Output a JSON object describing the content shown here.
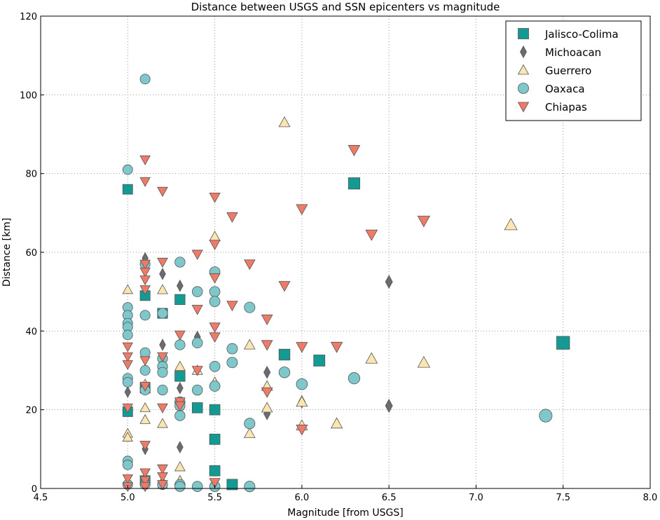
{
  "chart_data": {
    "type": "scatter",
    "title": "Distance between USGS and SSN epicenters vs magnitude",
    "xlabel": "Magnitude [from USGS]",
    "ylabel": "Distance [km]",
    "xlim": [
      4.5,
      8.0
    ],
    "ylim": [
      0,
      120
    ],
    "xticks": [
      "4.5",
      "5.0",
      "5.5",
      "6.0",
      "6.5",
      "7.0",
      "7.5",
      "8.0"
    ],
    "yticks": [
      "0",
      "20",
      "40",
      "60",
      "80",
      "100",
      "120"
    ],
    "grid": true,
    "legend_position": "top-right",
    "series": [
      {
        "name": "Jalisco-Colima",
        "marker": "square",
        "color": "#139a93",
        "points": [
          [
            5.0,
            76
          ],
          [
            5.0,
            19.5
          ],
          [
            5.1,
            49
          ],
          [
            5.1,
            25.5
          ],
          [
            5.1,
            2
          ],
          [
            5.2,
            44.5
          ],
          [
            5.3,
            48
          ],
          [
            5.3,
            28.5
          ],
          [
            5.4,
            20.5
          ],
          [
            5.5,
            20
          ],
          [
            5.5,
            12.5
          ],
          [
            5.5,
            4.5
          ],
          [
            5.6,
            1
          ],
          [
            5.9,
            34
          ],
          [
            6.1,
            32.5
          ],
          [
            6.3,
            77.5
          ],
          [
            7.5,
            37
          ]
        ]
      },
      {
        "name": "Michoacan",
        "marker": "diamond",
        "color": "#6c6c70",
        "points": [
          [
            5.0,
            24.5
          ],
          [
            5.1,
            58.5
          ],
          [
            5.1,
            56
          ],
          [
            5.1,
            10
          ],
          [
            5.2,
            54.5
          ],
          [
            5.2,
            36.5
          ],
          [
            5.3,
            51.5
          ],
          [
            5.3,
            25.5
          ],
          [
            5.3,
            10.5
          ],
          [
            5.4,
            38.5
          ],
          [
            5.8,
            29.5
          ],
          [
            5.8,
            19
          ],
          [
            6.0,
            22
          ],
          [
            6.5,
            52.5
          ],
          [
            6.5,
            21
          ]
        ]
      },
      {
        "name": "Guerrero",
        "marker": "triangle-up",
        "color": "#fbe6b2",
        "points": [
          [
            5.0,
            50.5
          ],
          [
            5.0,
            14
          ],
          [
            5.0,
            13
          ],
          [
            5.1,
            26.5
          ],
          [
            5.1,
            20.5
          ],
          [
            5.1,
            17.5
          ],
          [
            5.2,
            50.5
          ],
          [
            5.2,
            16.5
          ],
          [
            5.2,
            1
          ],
          [
            5.3,
            31
          ],
          [
            5.3,
            5.5
          ],
          [
            5.3,
            2
          ],
          [
            5.4,
            30
          ],
          [
            5.5,
            64
          ],
          [
            5.5,
            27
          ],
          [
            5.7,
            36.5
          ],
          [
            5.7,
            14
          ],
          [
            5.8,
            26
          ],
          [
            5.8,
            20.5
          ],
          [
            5.9,
            93
          ],
          [
            6.0,
            22
          ],
          [
            6.0,
            16
          ],
          [
            6.2,
            16.5
          ],
          [
            6.4,
            33
          ],
          [
            6.7,
            32
          ],
          [
            7.2,
            67
          ]
        ]
      },
      {
        "name": "Oaxaca",
        "marker": "circle",
        "color": "#7ec8cb",
        "points": [
          [
            5.0,
            81
          ],
          [
            5.0,
            46
          ],
          [
            5.0,
            44
          ],
          [
            5.0,
            42
          ],
          [
            5.0,
            41
          ],
          [
            5.0,
            39
          ],
          [
            5.0,
            28
          ],
          [
            5.0,
            27
          ],
          [
            5.0,
            7
          ],
          [
            5.0,
            6
          ],
          [
            5.0,
            1
          ],
          [
            5.1,
            104
          ],
          [
            5.1,
            57
          ],
          [
            5.1,
            44
          ],
          [
            5.1,
            34.5
          ],
          [
            5.1,
            30
          ],
          [
            5.1,
            25
          ],
          [
            5.1,
            1
          ],
          [
            5.2,
            44.5
          ],
          [
            5.2,
            33
          ],
          [
            5.2,
            31
          ],
          [
            5.2,
            29.5
          ],
          [
            5.2,
            25
          ],
          [
            5.2,
            1
          ],
          [
            5.3,
            57.5
          ],
          [
            5.3,
            36.5
          ],
          [
            5.3,
            22
          ],
          [
            5.3,
            21
          ],
          [
            5.3,
            18.5
          ],
          [
            5.3,
            1
          ],
          [
            5.3,
            0.5
          ],
          [
            5.4,
            50
          ],
          [
            5.4,
            37
          ],
          [
            5.4,
            25
          ],
          [
            5.4,
            0.5
          ],
          [
            5.5,
            55
          ],
          [
            5.5,
            50
          ],
          [
            5.5,
            47.5
          ],
          [
            5.5,
            31
          ],
          [
            5.5,
            26
          ],
          [
            5.5,
            0.5
          ],
          [
            5.6,
            35.5
          ],
          [
            5.6,
            32
          ],
          [
            5.7,
            46
          ],
          [
            5.7,
            16.5
          ],
          [
            5.7,
            0.5
          ],
          [
            5.9,
            29.5
          ],
          [
            6.0,
            26.5
          ],
          [
            6.3,
            28
          ],
          [
            7.4,
            18.5
          ]
        ]
      },
      {
        "name": "Chiapas",
        "marker": "triangle-down",
        "color": "#ee7a67",
        "points": [
          [
            5.0,
            36
          ],
          [
            5.0,
            33.5
          ],
          [
            5.0,
            31.5
          ],
          [
            5.0,
            20.5
          ],
          [
            5.0,
            2.5
          ],
          [
            5.0,
            0.5
          ],
          [
            5.1,
            83.5
          ],
          [
            5.1,
            78
          ],
          [
            5.1,
            57
          ],
          [
            5.1,
            55
          ],
          [
            5.1,
            53
          ],
          [
            5.1,
            50.5
          ],
          [
            5.1,
            32.5
          ],
          [
            5.1,
            26
          ],
          [
            5.1,
            11
          ],
          [
            5.1,
            4
          ],
          [
            5.1,
            2
          ],
          [
            5.1,
            0.5
          ],
          [
            5.2,
            75.5
          ],
          [
            5.2,
            57.5
          ],
          [
            5.2,
            33.5
          ],
          [
            5.2,
            20.5
          ],
          [
            5.2,
            5
          ],
          [
            5.2,
            3
          ],
          [
            5.2,
            1
          ],
          [
            5.3,
            39
          ],
          [
            5.3,
            22
          ],
          [
            5.3,
            21
          ],
          [
            5.4,
            59.5
          ],
          [
            5.4,
            45.5
          ],
          [
            5.4,
            30
          ],
          [
            5.5,
            74
          ],
          [
            5.5,
            62
          ],
          [
            5.5,
            53.5
          ],
          [
            5.5,
            41
          ],
          [
            5.5,
            38.5
          ],
          [
            5.5,
            1.5
          ],
          [
            5.6,
            69
          ],
          [
            5.6,
            46.5
          ],
          [
            5.7,
            57
          ],
          [
            5.8,
            43
          ],
          [
            5.8,
            36.5
          ],
          [
            5.8,
            24.5
          ],
          [
            5.9,
            51.5
          ],
          [
            6.0,
            71
          ],
          [
            6.0,
            36
          ],
          [
            6.0,
            15
          ],
          [
            6.2,
            36
          ],
          [
            6.3,
            86
          ],
          [
            6.4,
            64.5
          ],
          [
            6.7,
            68
          ]
        ]
      }
    ]
  }
}
